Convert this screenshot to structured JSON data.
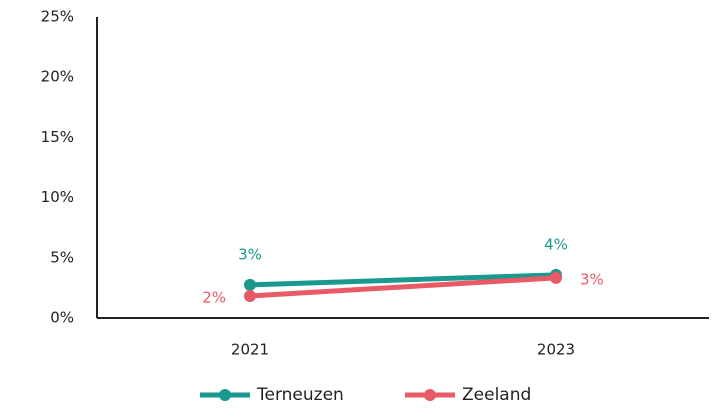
{
  "chart_data": {
    "type": "line",
    "categories": [
      "2021",
      "2023"
    ],
    "series": [
      {
        "name": "Terneuzen",
        "color": "#1a9a8e",
        "values": [
          2.75,
          3.58
        ],
        "value_labels": [
          "3%",
          "4%"
        ]
      },
      {
        "name": "Zeeland",
        "color": "#e85a66",
        "values": [
          1.83,
          3.33
        ],
        "value_labels": [
          "2%",
          "3%"
        ]
      }
    ],
    "ylim": [
      0,
      25
    ],
    "yticks": [
      {
        "value": 0,
        "label": "0%"
      },
      {
        "value": 5,
        "label": "5%"
      },
      {
        "value": 10,
        "label": "10%"
      },
      {
        "value": 15,
        "label": "15%"
      },
      {
        "value": 20,
        "label": "20%"
      },
      {
        "value": 25,
        "label": "25%"
      }
    ],
    "grid": false,
    "legend": "bottom"
  }
}
